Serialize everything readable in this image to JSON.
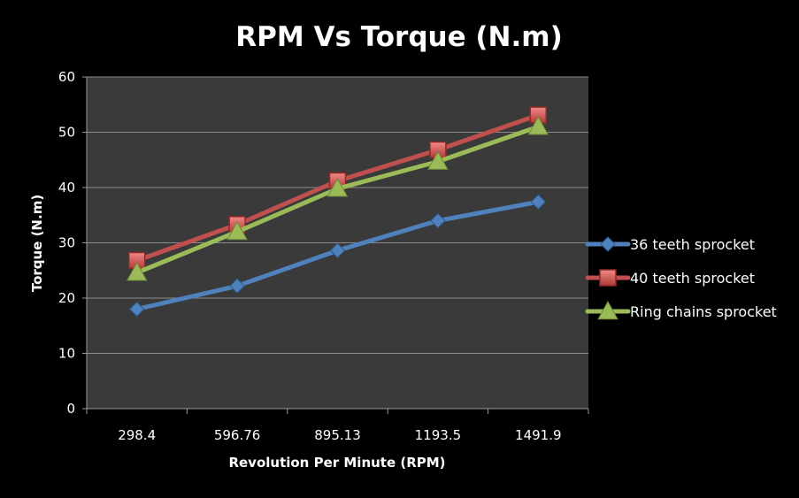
{
  "chart_data": {
    "type": "line",
    "title": "RPM Vs Torque (N.m)",
    "xlabel": "Revolution Per Minute (RPM)",
    "ylabel": "Torque (N.m)",
    "categories": [
      "298.4",
      "596.76",
      "895.13",
      "1193.5",
      "1491.9"
    ],
    "ylim": [
      0,
      60
    ],
    "yticks": [
      "0",
      "10",
      "20",
      "30",
      "40",
      "50",
      "60"
    ],
    "ytick_values": [
      0,
      10,
      20,
      30,
      40,
      50,
      60
    ],
    "grid": true,
    "legend_position": "right",
    "series": [
      {
        "name": "36 teeth sprocket",
        "values": [
          18,
          22.2,
          28.6,
          34,
          37.4
        ],
        "color": "#4f81bd",
        "marker": "diamond"
      },
      {
        "name": "40 teeth sprocket",
        "values": [
          26.8,
          33.3,
          41.2,
          46.8,
          53.1
        ],
        "color": "#c0504d",
        "marker": "square"
      },
      {
        "name": "Ring chains sprocket",
        "values": [
          24.6,
          32,
          39.8,
          44.7,
          51
        ],
        "color": "#9bbb59",
        "marker": "triangle"
      }
    ]
  },
  "colors": {
    "background": "#000000",
    "plot_area": "#3a3a3a",
    "grid": "#8c8c8c",
    "text": "#ffffff"
  }
}
